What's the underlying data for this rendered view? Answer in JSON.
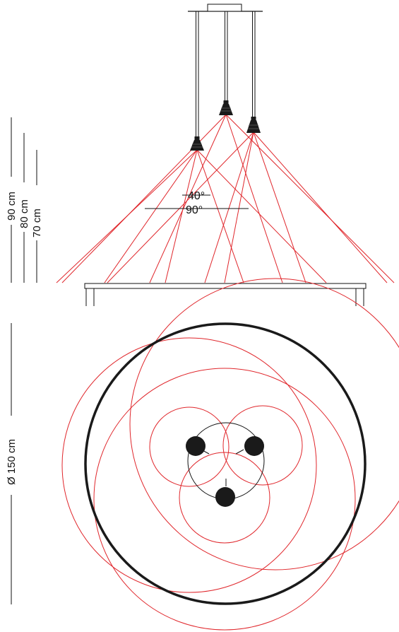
{
  "dimensions": {
    "height_90": "90 cm",
    "height_80": "80 cm",
    "height_70": "70 cm",
    "diameter": "Ø 150 cm"
  },
  "angles": {
    "narrow": "40°",
    "wide": "90°"
  },
  "colors": {
    "beam": "#e0262b",
    "line": "#111111",
    "shade": "#1a1a1a",
    "background": "#ffffff"
  }
}
